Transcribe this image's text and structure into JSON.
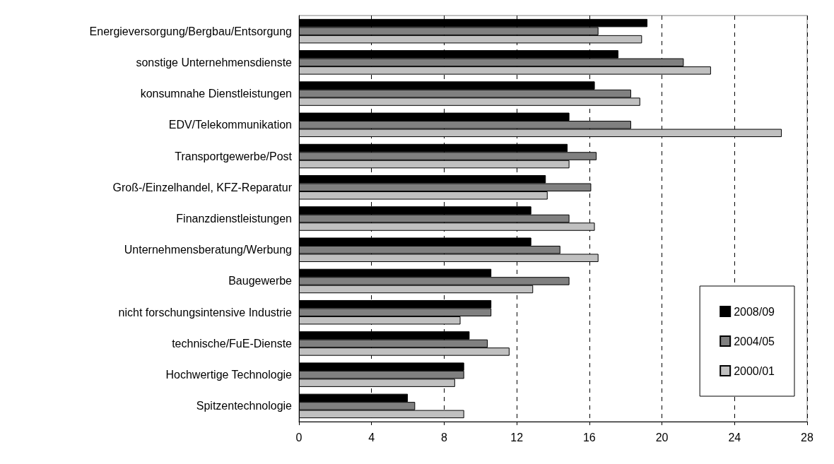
{
  "chart_data": {
    "type": "bar",
    "orientation": "horizontal",
    "categories": [
      "Energieversorgung/Bergbau/Entsorgung",
      "sonstige Unternehmensdienste",
      "konsumnahe Dienstleistungen",
      "EDV/Telekommunikation",
      "Transportgewerbe/Post",
      "Groß-/Einzelhandel, KFZ-Reparatur",
      "Finanzdienstleistungen",
      "Unternehmensberatung/Werbung",
      "Baugewerbe",
      "nicht forschungsintensive Industrie",
      "technische/FuE-Dienste",
      "Hochwertige Technologie",
      "Spitzentechnologie"
    ],
    "series": [
      {
        "name": "2008/09",
        "color": "#000000",
        "values": [
          19.2,
          17.6,
          16.3,
          14.9,
          14.8,
          13.6,
          12.8,
          12.8,
          10.6,
          10.6,
          9.4,
          9.1,
          6.0
        ]
      },
      {
        "name": "2004/05",
        "color": "#808080",
        "values": [
          16.5,
          21.2,
          18.3,
          18.3,
          16.4,
          16.1,
          14.9,
          14.4,
          14.9,
          10.6,
          10.4,
          9.1,
          6.4
        ]
      },
      {
        "name": "2000/01",
        "color": "#c0c0c0",
        "values": [
          18.9,
          22.7,
          18.8,
          26.6,
          14.9,
          13.7,
          16.3,
          16.5,
          12.9,
          8.9,
          11.6,
          8.6,
          9.1
        ]
      }
    ],
    "xlim": [
      0,
      28
    ],
    "xticks": [
      0,
      4,
      8,
      12,
      16,
      20,
      24,
      28
    ],
    "grid": "x",
    "legend": "bottom right"
  }
}
